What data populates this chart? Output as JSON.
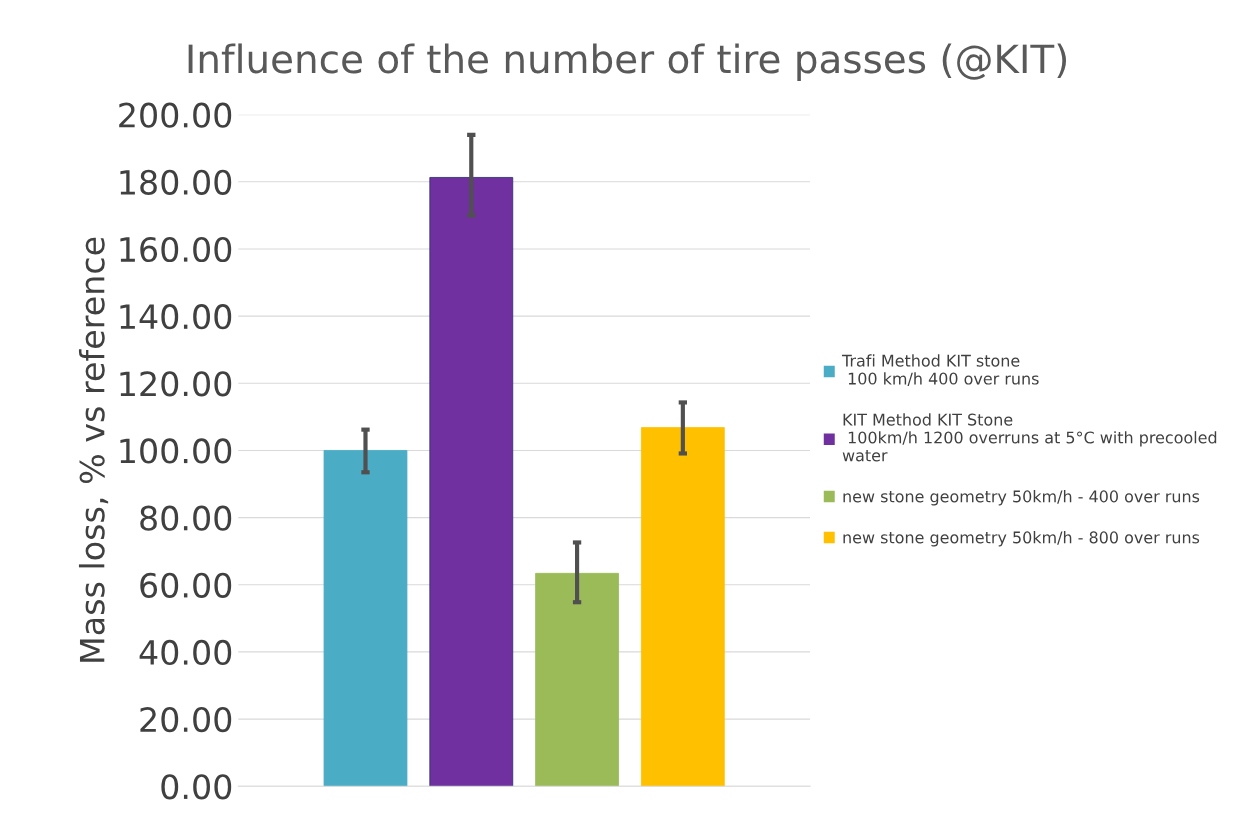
{
  "chart_data": {
    "type": "bar",
    "title": "Influence of the number of tire passes (@KIT)",
    "ylabel": "Mass loss, % vs reference",
    "categories": [
      null
    ],
    "series": [
      {
        "name": "Trafi Method KIT stone\n 100 km/h 400 over runs",
        "color": "#4bacc6",
        "values": [
          100
        ],
        "errors": [
          [
            93.5,
            106.2
          ]
        ]
      },
      {
        "name": "KIT Method KIT Stone\n 100km/h 1200 overruns at 5°C with precooled\nwater",
        "color": "#7030a0",
        "values": [
          181.3
        ],
        "errors": [
          [
            170,
            194
          ]
        ]
      },
      {
        "name": "new stone geometry 50km/h - 400 over runs",
        "color": "#9bbb59",
        "values": [
          63.4
        ],
        "errors": [
          [
            54.8,
            72.6
          ]
        ]
      },
      {
        "name": "new stone geometry 50km/h - 800 over runs",
        "color": "#ffc000",
        "values": [
          106.8
        ],
        "errors": [
          [
            99.1,
            114.3
          ]
        ]
      }
    ],
    "ylim": [
      0,
      200
    ],
    "yticks": [
      {
        "value": 0,
        "label": "0.00"
      },
      {
        "value": 20,
        "label": "20.00"
      },
      {
        "value": 40,
        "label": "40.00"
      },
      {
        "value": 60,
        "label": "60.00"
      },
      {
        "value": 80,
        "label": "80.00"
      },
      {
        "value": 100,
        "label": "100.00"
      },
      {
        "value": 120,
        "label": "120.00"
      },
      {
        "value": 140,
        "label": "140.00"
      },
      {
        "value": 160,
        "label": "160.00"
      },
      {
        "value": 180,
        "label": "180.00"
      },
      {
        "value": 200,
        "label": "200.00"
      }
    ],
    "grid": "y",
    "legend": "right"
  }
}
